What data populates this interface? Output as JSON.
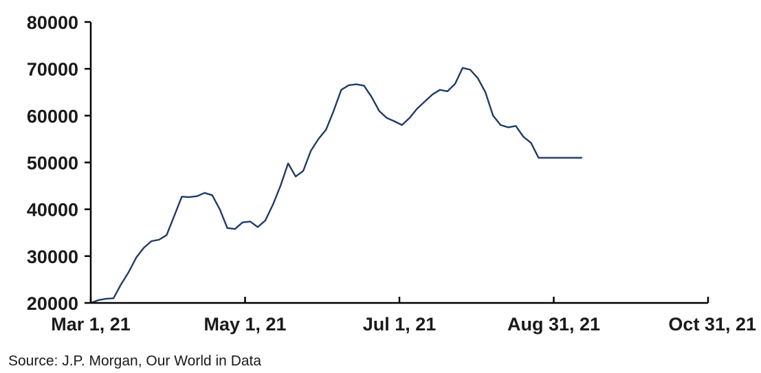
{
  "chart_data": {
    "type": "line",
    "title": "",
    "xlabel": "",
    "ylabel": "",
    "ylim": [
      20000,
      80000
    ],
    "yticks": [
      20000,
      30000,
      40000,
      50000,
      60000,
      70000,
      80000
    ],
    "ytick_labels": [
      "20000",
      "30000",
      "40000",
      "50000",
      "60000",
      "70000",
      "80000"
    ],
    "xlim": [
      "2021-03-01",
      "2021-10-31"
    ],
    "xticks": [
      "2021-03-01",
      "2021-05-01",
      "2021-07-01",
      "2021-08-31",
      "2021-10-31"
    ],
    "xtick_labels": [
      "Mar 1, 21",
      "May 1, 21",
      "Jul 1, 21",
      "Aug 31, 21",
      "Oct 31, 21"
    ],
    "grid": false,
    "legend": "none",
    "line_color": "#1f3a68",
    "series": [
      {
        "x": [
          "2021-03-01",
          "2021-03-04",
          "2021-03-07",
          "2021-03-10",
          "2021-03-13",
          "2021-03-16",
          "2021-03-19",
          "2021-03-22",
          "2021-03-25",
          "2021-03-28",
          "2021-03-31",
          "2021-04-03",
          "2021-04-06",
          "2021-04-09",
          "2021-04-12",
          "2021-04-15",
          "2021-04-18",
          "2021-04-21",
          "2021-04-24",
          "2021-04-27",
          "2021-04-30",
          "2021-05-03",
          "2021-05-06",
          "2021-05-09",
          "2021-05-12",
          "2021-05-15",
          "2021-05-18",
          "2021-05-21",
          "2021-05-24",
          "2021-05-27",
          "2021-05-30",
          "2021-06-02",
          "2021-06-05",
          "2021-06-08",
          "2021-06-11",
          "2021-06-14",
          "2021-06-17",
          "2021-06-20",
          "2021-06-23",
          "2021-06-26",
          "2021-06-29",
          "2021-07-02",
          "2021-07-05",
          "2021-07-08",
          "2021-07-11",
          "2021-07-14",
          "2021-07-17",
          "2021-07-20",
          "2021-07-23",
          "2021-07-26",
          "2021-07-29",
          "2021-08-01",
          "2021-08-04",
          "2021-08-07",
          "2021-08-10",
          "2021-08-13",
          "2021-08-16",
          "2021-08-19",
          "2021-08-22",
          "2021-08-25",
          "2021-08-28",
          "2021-08-31",
          "2021-09-03",
          "2021-09-06",
          "2021-09-09",
          "2021-09-11"
        ],
        "values": [
          20000,
          20600,
          20900,
          21000,
          24000,
          26600,
          29700,
          31800,
          33200,
          33500,
          34500,
          38600,
          42700,
          42600,
          42800,
          43500,
          43000,
          40000,
          36000,
          35800,
          37200,
          37400,
          36200,
          37600,
          41000,
          45000,
          49800,
          47000,
          48200,
          52500,
          55000,
          57000,
          61000,
          65500,
          66500,
          66700,
          66400,
          64000,
          61000,
          59500,
          58800,
          58000,
          59500,
          61500,
          63000,
          64500,
          65500,
          65200,
          66800,
          70200,
          69800,
          68000,
          65000,
          60000,
          58000,
          57500,
          57800,
          55500,
          54200,
          51000,
          51000,
          51000,
          51000,
          51000,
          51000,
          51000
        ]
      }
    ],
    "annotations": [
      "Source: J.P. Morgan, Our World in Data"
    ]
  }
}
